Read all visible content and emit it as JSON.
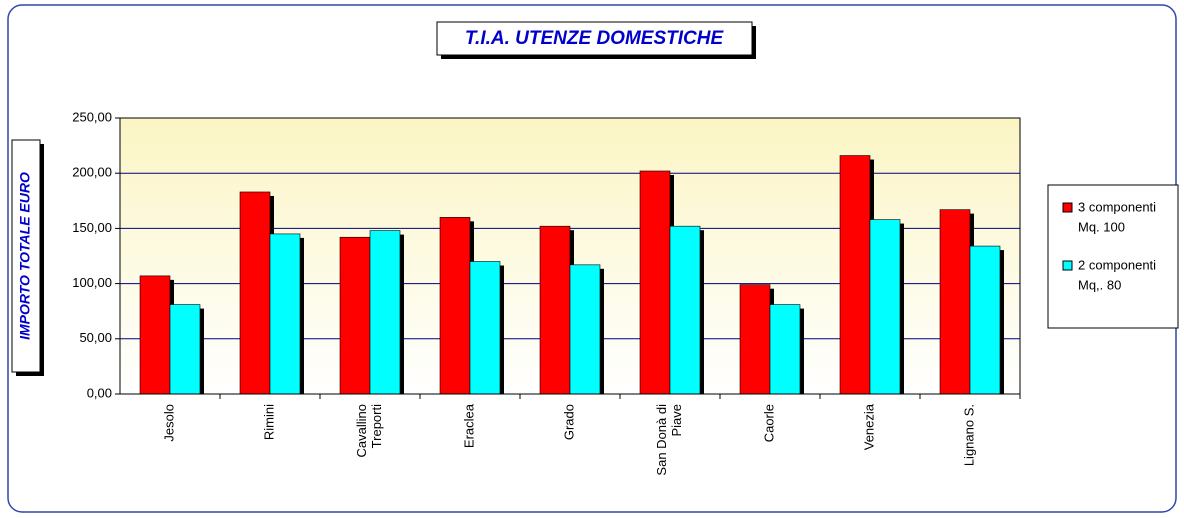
{
  "chart_data": {
    "type": "bar",
    "title": "T.I.A. UTENZE DOMESTICHE",
    "y_label": "IMPORTO TOTALE EURO",
    "categories": [
      [
        "Jesolo"
      ],
      [
        "Rimini"
      ],
      [
        "Cavallino",
        "Treporti"
      ],
      [
        "Eraclea"
      ],
      [
        "Grado"
      ],
      [
        "San Donà di",
        "Piave"
      ],
      [
        "Caorle"
      ],
      [
        "Venezia"
      ],
      [
        "Lignano S."
      ]
    ],
    "series": [
      {
        "name": [
          "3 componenti",
          "Mq. 100"
        ],
        "color": "#ff0000",
        "values": [
          107,
          183,
          142,
          160,
          152,
          202,
          99,
          216,
          167
        ]
      },
      {
        "name": [
          "2 componenti",
          "Mq,. 80"
        ],
        "color": "#00ffff",
        "values": [
          81,
          145,
          148,
          120,
          117,
          152,
          81,
          158,
          134
        ]
      }
    ],
    "ylim": [
      0,
      250
    ],
    "yticks": [
      {
        "value": 0,
        "label": "0,00"
      },
      {
        "value": 50,
        "label": "50,00"
      },
      {
        "value": 100,
        "label": "100,00"
      },
      {
        "value": 150,
        "label": "150,00"
      },
      {
        "value": 200,
        "label": "200,00"
      },
      {
        "value": 250,
        "label": "250,00"
      }
    ],
    "grid": true,
    "legend": "right"
  }
}
